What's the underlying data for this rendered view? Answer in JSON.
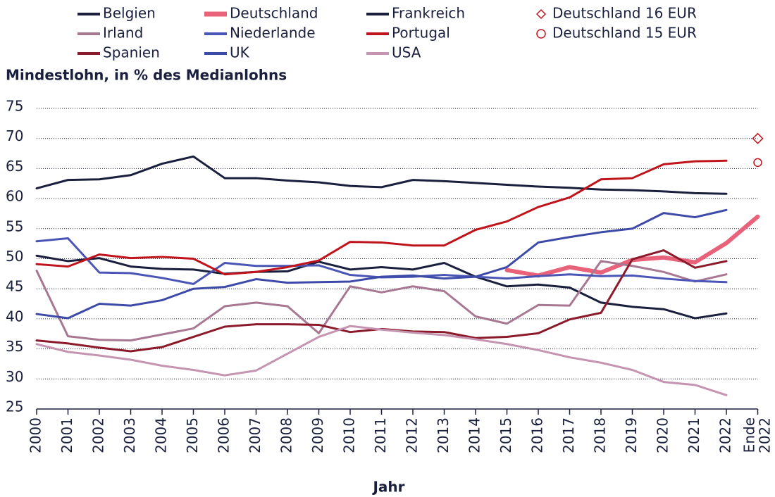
{
  "chart_data": {
    "type": "line",
    "y_label": "Mindestlohn, in % des Medianlohns",
    "x_label": "Jahr",
    "categories": [
      "2000",
      "2001",
      "2002",
      "2003",
      "2004",
      "2005",
      "2006",
      "2007",
      "2008",
      "2009",
      "2010",
      "2011",
      "2012",
      "2013",
      "2014",
      "2015",
      "2016",
      "2017",
      "2018",
      "2019",
      "2020",
      "2021",
      "2022",
      "Ende 2022"
    ],
    "ylim": [
      25,
      75
    ],
    "yticks": [
      25,
      30,
      35,
      40,
      45,
      50,
      55,
      60,
      65,
      70,
      75
    ],
    "grid": true,
    "series": [
      {
        "name": "Belgien",
        "color": "#1a1f3d",
        "width": 3,
        "values": [
          50.5,
          49.6,
          50.1,
          48.7,
          48.3,
          48.2,
          47.5,
          47.8,
          47.9,
          49.5,
          48.2,
          48.6,
          48.2,
          49.3,
          47.0,
          45.4,
          45.7,
          45.2,
          42.7,
          42.0,
          41.6,
          40.1,
          40.9,
          null
        ]
      },
      {
        "name": "Deutschland",
        "color": "#e8637a",
        "width": 6,
        "values": [
          null,
          null,
          null,
          null,
          null,
          null,
          null,
          null,
          null,
          null,
          null,
          null,
          null,
          null,
          null,
          48.1,
          47.2,
          48.6,
          47.7,
          49.8,
          50.2,
          49.4,
          52.6,
          57.0
        ]
      },
      {
        "name": "Frankreich",
        "color": "#1a1f3d",
        "width": 3,
        "values": [
          61.7,
          63.1,
          63.2,
          63.9,
          65.8,
          67.0,
          63.4,
          63.4,
          63.0,
          62.7,
          62.1,
          61.9,
          63.1,
          62.9,
          62.6,
          62.3,
          62.0,
          61.8,
          61.5,
          61.4,
          61.2,
          60.9,
          60.8,
          null
        ]
      },
      {
        "name": "Deutschland 16 EUR",
        "color": "#c0141c",
        "marker": "diamond",
        "values": [
          null,
          null,
          null,
          null,
          null,
          null,
          null,
          null,
          null,
          null,
          null,
          null,
          null,
          null,
          null,
          null,
          null,
          null,
          null,
          null,
          null,
          null,
          null,
          70.0
        ]
      },
      {
        "name": "Irland",
        "color": "#a87892",
        "width": 3,
        "values": [
          48.0,
          37.1,
          36.5,
          36.4,
          37.4,
          38.4,
          42.1,
          42.7,
          42.1,
          37.6,
          45.4,
          44.4,
          45.4,
          44.6,
          40.4,
          39.2,
          42.3,
          42.2,
          49.6,
          48.8,
          47.8,
          46.2,
          47.4,
          null
        ]
      },
      {
        "name": "Niederlande",
        "color": "#4a55b5",
        "width": 3,
        "values": [
          52.9,
          53.4,
          47.7,
          47.6,
          46.8,
          45.8,
          49.3,
          48.8,
          48.8,
          48.9,
          47.3,
          46.9,
          47.0,
          47.3,
          47.0,
          46.7,
          47.1,
          47.4,
          47.1,
          47.2,
          46.7,
          46.3,
          46.1,
          null
        ]
      },
      {
        "name": "Portugal",
        "color": "#c0141c",
        "width": 3,
        "values": [
          49.1,
          48.7,
          50.7,
          50.1,
          50.3,
          50.0,
          47.4,
          47.8,
          48.6,
          49.7,
          52.8,
          52.7,
          52.2,
          52.2,
          54.8,
          56.2,
          58.6,
          60.2,
          63.2,
          63.4,
          65.7,
          66.2,
          66.3,
          null
        ]
      },
      {
        "name": "Deutschland 15 EUR",
        "color": "#c0141c",
        "marker": "circle",
        "values": [
          null,
          null,
          null,
          null,
          null,
          null,
          null,
          null,
          null,
          null,
          null,
          null,
          null,
          null,
          null,
          null,
          null,
          null,
          null,
          null,
          null,
          null,
          null,
          66.0
        ]
      },
      {
        "name": "Spanien",
        "color": "#8b1a2b",
        "width": 3,
        "values": [
          36.4,
          35.9,
          35.2,
          34.6,
          35.3,
          37.0,
          38.7,
          39.1,
          39.1,
          39.0,
          37.8,
          38.3,
          37.9,
          37.8,
          36.8,
          37.0,
          37.6,
          39.9,
          41.0,
          49.9,
          51.4,
          48.5,
          49.6,
          null
        ]
      },
      {
        "name": "UK",
        "color": "#3d4aa8",
        "width": 3,
        "values": [
          40.8,
          40.1,
          42.5,
          42.2,
          43.1,
          45.0,
          45.3,
          46.6,
          46.0,
          46.1,
          46.2,
          47.0,
          47.2,
          46.7,
          47.0,
          48.6,
          52.7,
          53.6,
          54.4,
          55.0,
          57.6,
          56.9,
          58.1,
          null
        ]
      },
      {
        "name": "USA",
        "color": "#c594b0",
        "width": 3,
        "values": [
          35.8,
          34.5,
          33.9,
          33.2,
          32.2,
          31.5,
          30.6,
          31.4,
          34.2,
          37.0,
          38.8,
          38.2,
          37.7,
          37.3,
          36.6,
          35.8,
          34.8,
          33.6,
          32.7,
          31.5,
          29.5,
          29.0,
          27.3,
          null
        ]
      }
    ]
  }
}
